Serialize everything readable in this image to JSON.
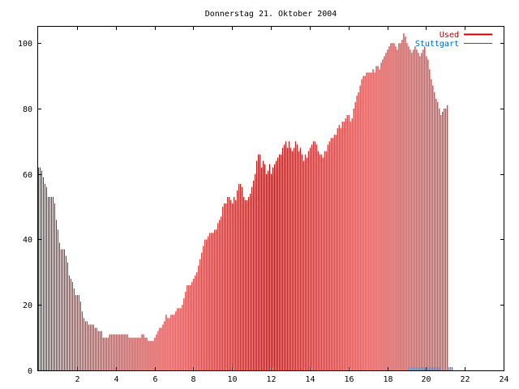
{
  "chart_data": {
    "type": "bar",
    "title": "Donnerstag 21. Oktober 2004",
    "xlabel": "",
    "ylabel": "",
    "xlim": [
      0,
      24
    ],
    "ylim": [
      0,
      105
    ],
    "xticks": [
      2,
      4,
      6,
      8,
      10,
      12,
      14,
      16,
      18,
      20,
      22,
      24
    ],
    "yticks": [
      0,
      20,
      40,
      60,
      80,
      100
    ],
    "grid": false,
    "legend_position": "top-right",
    "series": [
      {
        "name": "Used",
        "color": "#cc0000",
        "x_start": 0,
        "x_step": 0.083333,
        "values": [
          62,
          62,
          61,
          59,
          57,
          56,
          53,
          53,
          53,
          53,
          51,
          46,
          43,
          39,
          37,
          37,
          37,
          35,
          33,
          29,
          28,
          27,
          25,
          23,
          23,
          23,
          21,
          18,
          16,
          15,
          15,
          14,
          14,
          14,
          14,
          13,
          13,
          12,
          12,
          12,
          10,
          10,
          10,
          10,
          11,
          11,
          11,
          11,
          11,
          11,
          11,
          11,
          11,
          11,
          11,
          11,
          10,
          10,
          10,
          10,
          10,
          10,
          10,
          10,
          11,
          11,
          10,
          10,
          9,
          9,
          9,
          9,
          10,
          11,
          12,
          13,
          13,
          14,
          15,
          17,
          16,
          16,
          17,
          17,
          17,
          18,
          19,
          19,
          19,
          20,
          22,
          24,
          26,
          26,
          26,
          27,
          28,
          29,
          30,
          32,
          34,
          36,
          38,
          40,
          40,
          41,
          42,
          42,
          42,
          43,
          43,
          45,
          46,
          47,
          50,
          51,
          51,
          53,
          53,
          52,
          51,
          53,
          52,
          55,
          57,
          57,
          56,
          53,
          52,
          52,
          53,
          54,
          56,
          58,
          60,
          64,
          66,
          66,
          62,
          64,
          63,
          60,
          61,
          63,
          60,
          62,
          63,
          64,
          65,
          66,
          66,
          68,
          69,
          70,
          68,
          70,
          68,
          67,
          68,
          70,
          69,
          67,
          68,
          66,
          64,
          66,
          65,
          67,
          68,
          69,
          70,
          70,
          69,
          67,
          66,
          66,
          65,
          67,
          67,
          69,
          70,
          71,
          71,
          72,
          72,
          74,
          75,
          74,
          76,
          76,
          77,
          78,
          78,
          76,
          77,
          80,
          82,
          84,
          85,
          87,
          89,
          90,
          90,
          91,
          91,
          91,
          91,
          92,
          91,
          93,
          93,
          92,
          94,
          95,
          96,
          97,
          98,
          99,
          100,
          100,
          100,
          99,
          98,
          100,
          100,
          101,
          103,
          102,
          100,
          99,
          98,
          97,
          98,
          99,
          98,
          97,
          96,
          97,
          98,
          99,
          96,
          95,
          92,
          89,
          87,
          85,
          83,
          82,
          80,
          78,
          79,
          80,
          80,
          81
        ]
      },
      {
        "name": "Stuttgart",
        "color": "#0066cc",
        "x_start": 0,
        "x_step": 0.083333,
        "values": [
          0,
          0,
          0,
          0,
          0,
          0,
          0,
          0,
          0,
          0,
          0,
          0,
          0,
          0,
          0,
          0,
          0,
          0,
          0,
          0,
          0,
          0,
          0,
          0,
          0,
          0,
          0,
          0,
          0,
          0,
          0,
          0,
          0,
          0,
          0,
          0,
          0,
          0,
          0,
          0,
          0,
          0,
          0,
          0,
          0,
          0,
          0,
          0,
          0,
          0,
          0,
          0,
          0,
          0,
          0,
          0,
          0,
          0,
          0,
          0,
          0,
          0,
          0,
          0,
          0,
          0,
          0,
          0,
          0,
          0,
          0,
          0,
          0,
          0,
          0,
          0,
          0,
          0,
          0,
          0,
          0,
          0,
          0,
          0,
          0,
          0,
          0,
          0,
          0,
          0,
          0,
          0,
          0,
          0,
          0,
          0,
          0,
          0,
          0,
          0,
          0,
          0,
          0,
          0,
          0,
          0,
          0,
          0,
          0,
          0,
          0,
          0,
          0,
          0,
          0,
          0,
          0,
          0,
          0,
          0,
          0,
          0,
          0,
          0,
          0,
          0,
          0,
          0,
          0,
          0,
          0,
          0,
          0,
          0,
          0,
          0,
          0,
          0,
          0,
          0,
          0,
          0,
          0,
          0,
          0,
          0,
          0,
          0,
          0,
          0,
          0,
          0,
          0,
          0,
          0,
          0,
          0,
          0,
          0,
          0,
          0,
          0,
          0,
          0,
          0,
          0,
          0,
          0,
          0,
          0,
          0,
          0,
          0,
          0,
          0,
          0,
          0,
          0,
          0,
          0,
          0,
          0,
          0,
          0,
          0,
          0,
          0,
          0,
          0,
          0,
          0,
          0,
          0,
          0,
          0,
          0,
          0,
          0,
          0,
          0,
          0,
          0,
          0,
          0,
          0,
          0,
          0,
          0,
          0,
          0,
          0,
          0,
          0,
          0,
          0,
          0,
          0,
          0,
          0,
          0,
          0,
          0,
          0,
          0,
          0,
          0,
          0,
          0,
          0,
          1,
          1,
          1,
          1,
          1,
          1,
          1,
          1,
          1,
          1,
          1,
          1,
          1,
          1,
          1,
          1,
          1,
          1,
          1,
          1,
          0,
          0,
          0,
          0,
          0,
          1,
          1,
          1,
          0,
          0,
          0,
          0
        ]
      }
    ]
  }
}
